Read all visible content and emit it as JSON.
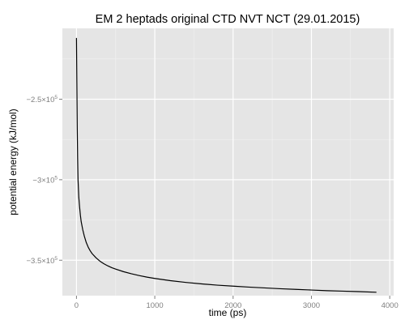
{
  "chart_data": {
    "type": "line",
    "title": "EM 2 heptads original CTD NVT NCT (29.01.2015)",
    "xlabel": "time (ps)",
    "ylabel": "potential energy (kJ/mol)",
    "xlim": [
      -180,
      4050
    ],
    "ylim": [
      -372000,
      -206000
    ],
    "x_ticks": [
      0,
      1000,
      2000,
      3000,
      4000
    ],
    "x_tick_labels": [
      "0",
      "1000",
      "2000",
      "3000",
      "4000"
    ],
    "y_ticks": [
      {
        "value": -250000,
        "base": "−2.5×10",
        "exp": "5"
      },
      {
        "value": -300000,
        "base": "−3×10",
        "exp": "5"
      },
      {
        "value": -350000,
        "base": "−3.5×10",
        "exp": "5"
      }
    ],
    "grid": true,
    "background": "#e5e5e5",
    "grid_major_color": "#ffffff",
    "grid_minor_color": "#f2f2f2",
    "line_color": "#000000",
    "series": [
      {
        "x": [
          0,
          5,
          10,
          15,
          20,
          30,
          40,
          50,
          60,
          80,
          100,
          125,
          150,
          175,
          200,
          250,
          300,
          350,
          400,
          450,
          500,
          600,
          700,
          800,
          900,
          1000,
          1200,
          1400,
          1600,
          1800,
          2000,
          2200,
          2400,
          2600,
          2800,
          3000,
          3200,
          3400,
          3600,
          3830
        ],
        "y": [
          -212000,
          -240000,
          -268000,
          -287000,
          -300000,
          -311000,
          -317000,
          -322000,
          -326000,
          -331000,
          -335000,
          -339000,
          -341900,
          -344100,
          -345900,
          -348500,
          -350600,
          -352200,
          -353500,
          -354600,
          -355500,
          -357100,
          -358400,
          -359500,
          -360500,
          -361300,
          -362700,
          -363800,
          -364700,
          -365500,
          -366100,
          -366700,
          -367200,
          -367700,
          -368100,
          -368500,
          -368900,
          -369200,
          -369500,
          -369900
        ]
      }
    ]
  }
}
